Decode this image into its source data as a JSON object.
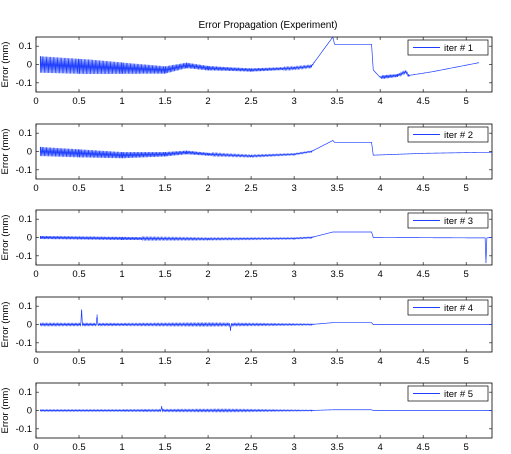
{
  "chart_data": {
    "type": "line",
    "title": "Error Propagation (Experiment)",
    "ylabel": "Error (mm)",
    "xlim": [
      0,
      5.3
    ],
    "ylim": [
      -0.15,
      0.15
    ],
    "x_ticks": [
      "0",
      "0.5",
      "1",
      "1.5",
      "2",
      "2.5",
      "3",
      "3.5",
      "4",
      "4.5",
      "5"
    ],
    "y_ticks": [
      "0.1",
      "0",
      "-0.1"
    ],
    "series_color": "#1f3fff",
    "legend_position": "top-right",
    "panels": [
      {
        "name": "iter # 1",
        "points": [
          [
            0.05,
            0.0
          ],
          [
            0.5,
            -0.01
          ],
          [
            1.0,
            -0.02
          ],
          [
            1.5,
            -0.03
          ],
          [
            1.75,
            -0.005
          ],
          [
            2.0,
            -0.02
          ],
          [
            2.5,
            -0.03
          ],
          [
            3.0,
            -0.02
          ],
          [
            3.2,
            -0.01
          ],
          [
            3.45,
            0.15
          ],
          [
            3.47,
            0.11
          ],
          [
            3.9,
            0.11
          ],
          [
            3.92,
            -0.03
          ],
          [
            4.0,
            -0.07
          ],
          [
            4.2,
            -0.06
          ],
          [
            4.3,
            -0.04
          ],
          [
            4.33,
            -0.06
          ],
          [
            4.6,
            -0.04
          ],
          [
            5.15,
            0.01
          ]
        ],
        "oscillation": [
          [
            0.05,
            0.045
          ],
          [
            0.6,
            0.04
          ],
          [
            1.5,
            0.02
          ],
          [
            1.75,
            0.015
          ],
          [
            2.2,
            0.01
          ],
          [
            3.2,
            0.006
          ],
          [
            3.25,
            0.0
          ],
          [
            4.0,
            0.0
          ],
          [
            4.02,
            0.01
          ],
          [
            4.33,
            0.006
          ],
          [
            4.35,
            0.0
          ]
        ]
      },
      {
        "name": "iter # 2",
        "points": [
          [
            0.05,
            0.0
          ],
          [
            0.5,
            -0.01
          ],
          [
            1.0,
            -0.02
          ],
          [
            1.5,
            -0.015
          ],
          [
            1.75,
            -0.005
          ],
          [
            2.0,
            -0.015
          ],
          [
            2.5,
            -0.025
          ],
          [
            3.0,
            -0.015
          ],
          [
            3.2,
            0.0
          ],
          [
            3.45,
            0.06
          ],
          [
            3.47,
            0.05
          ],
          [
            3.9,
            0.05
          ],
          [
            3.92,
            -0.02
          ],
          [
            4.5,
            -0.01
          ],
          [
            5.15,
            -0.005
          ],
          [
            5.3,
            -0.005
          ]
        ],
        "oscillation": [
          [
            0.05,
            0.025
          ],
          [
            0.5,
            0.022
          ],
          [
            1.5,
            0.012
          ],
          [
            2.2,
            0.006
          ],
          [
            3.2,
            0.003
          ],
          [
            3.25,
            0.0
          ]
        ]
      },
      {
        "name": "iter # 3",
        "points": [
          [
            0.05,
            0.0
          ],
          [
            1.0,
            -0.005
          ],
          [
            2.0,
            -0.008
          ],
          [
            3.0,
            -0.005
          ],
          [
            3.2,
            0.0
          ],
          [
            3.45,
            0.03
          ],
          [
            3.9,
            0.03
          ],
          [
            3.92,
            0.0
          ],
          [
            5.1,
            -0.002
          ],
          [
            5.22,
            -0.002
          ],
          [
            5.23,
            -0.14
          ],
          [
            5.24,
            -0.002
          ],
          [
            5.3,
            0.0
          ]
        ],
        "oscillation": [
          [
            0.05,
            0.008
          ],
          [
            1.0,
            0.008
          ],
          [
            2.0,
            0.005
          ],
          [
            3.2,
            0.003
          ],
          [
            3.25,
            0.0
          ]
        ]
      },
      {
        "name": "iter # 4",
        "points": [
          [
            0.05,
            0.0
          ],
          [
            0.52,
            0.0
          ],
          [
            0.53,
            0.08
          ],
          [
            0.54,
            0.0
          ],
          [
            0.7,
            0.0
          ],
          [
            0.71,
            0.05
          ],
          [
            0.72,
            0.0
          ],
          [
            2.25,
            0.0
          ],
          [
            2.26,
            -0.03
          ],
          [
            2.27,
            0.0
          ],
          [
            3.2,
            0.0
          ],
          [
            3.45,
            0.01
          ],
          [
            3.9,
            0.01
          ],
          [
            3.92,
            0.0
          ],
          [
            5.3,
            0.0
          ]
        ],
        "oscillation": [
          [
            0.05,
            0.006
          ],
          [
            1.0,
            0.005
          ],
          [
            2.0,
            0.007
          ],
          [
            3.2,
            0.003
          ],
          [
            3.25,
            0.0
          ]
        ]
      },
      {
        "name": "iter # 5",
        "points": [
          [
            0.05,
            0.0
          ],
          [
            1.45,
            0.0
          ],
          [
            1.46,
            0.02
          ],
          [
            1.47,
            0.0
          ],
          [
            3.2,
            0.0
          ],
          [
            3.45,
            0.004
          ],
          [
            3.9,
            0.004
          ],
          [
            3.92,
            0.0
          ],
          [
            5.3,
            0.0
          ]
        ],
        "oscillation": [
          [
            0.05,
            0.004
          ],
          [
            1.0,
            0.004
          ],
          [
            2.2,
            0.006
          ],
          [
            3.2,
            0.002
          ],
          [
            3.25,
            0.0
          ]
        ]
      }
    ]
  }
}
